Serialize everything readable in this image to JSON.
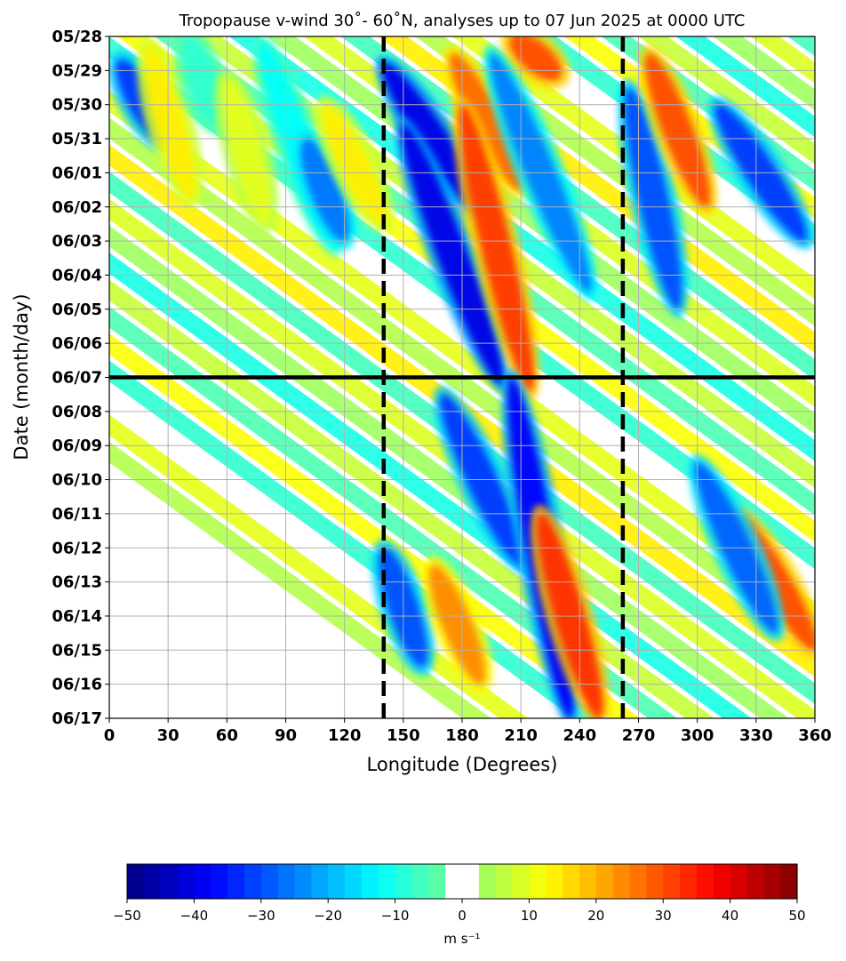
{
  "chart_data": {
    "type": "heatmap",
    "title": "Tropopause v-wind 30˚- 60˚N, analyses up to 07 Jun 2025 at 0000 UTC",
    "xlabel": "Longitude (Degrees)",
    "ylabel": "Date (month/day)",
    "x_ticks": [
      "0",
      "30",
      "60",
      "90",
      "120",
      "150",
      "180",
      "210",
      "240",
      "270",
      "300",
      "330",
      "360"
    ],
    "xlim": [
      0,
      360
    ],
    "y_ticks": [
      "05/28",
      "05/29",
      "05/30",
      "05/31",
      "06/01",
      "06/02",
      "06/03",
      "06/04",
      "06/05",
      "06/06",
      "06/07",
      "06/08",
      "06/09",
      "06/10",
      "06/11",
      "06/12",
      "06/13",
      "06/14",
      "06/15",
      "06/16",
      "06/17"
    ],
    "analysis_date": "06/07",
    "reference_longitudes": [
      140,
      262
    ],
    "grid": true,
    "colorbar": {
      "ticks": [
        "−50",
        "−40",
        "−30",
        "−20",
        "−10",
        "0",
        "10",
        "20",
        "30",
        "40",
        "50"
      ],
      "range": [
        -50,
        50
      ],
      "step": 2.5,
      "unit": "m s⁻¹",
      "colormap": "jet",
      "white_band": [
        -2.5,
        2.5
      ]
    },
    "features": [
      {
        "lon_start": 5,
        "lon_end": 30,
        "day_start": 0.7,
        "day_end": 3.2,
        "value": -32
      },
      {
        "lon_start": 20,
        "lon_end": 42,
        "day_start": 0.3,
        "day_end": 4.8,
        "value": 14
      },
      {
        "lon_start": 40,
        "lon_end": 55,
        "day_start": 0.0,
        "day_end": 2.6,
        "value": -8
      },
      {
        "lon_start": 60,
        "lon_end": 80,
        "day_start": 1.2,
        "day_end": 5.5,
        "value": 10
      },
      {
        "lon_start": 78,
        "lon_end": 115,
        "day_start": 0.2,
        "day_end": 6.2,
        "value": -12
      },
      {
        "lon_start": 100,
        "lon_end": 120,
        "day_start": 3.0,
        "day_end": 6.0,
        "value": -26
      },
      {
        "lon_start": 110,
        "lon_end": 140,
        "day_start": 2.0,
        "day_end": 5.5,
        "value": 14
      },
      {
        "lon_start": 140,
        "lon_end": 190,
        "day_start": 0.8,
        "day_end": 5.2,
        "value": -40
      },
      {
        "lon_start": 150,
        "lon_end": 200,
        "day_start": 2.6,
        "day_end": 10.2,
        "value": -40
      },
      {
        "lon_start": 175,
        "lon_end": 210,
        "day_start": 0.5,
        "day_end": 4.5,
        "value": 27
      },
      {
        "lon_start": 180,
        "lon_end": 215,
        "day_start": 2.0,
        "day_end": 10.4,
        "value": 32
      },
      {
        "lon_start": 205,
        "lon_end": 230,
        "day_start": 0.0,
        "day_end": 1.2,
        "value": 30
      },
      {
        "lon_start": 195,
        "lon_end": 245,
        "day_start": 0.5,
        "day_end": 7.5,
        "value": -25
      },
      {
        "lon_start": 265,
        "lon_end": 290,
        "day_start": 1.5,
        "day_end": 8.0,
        "value": -30
      },
      {
        "lon_start": 275,
        "lon_end": 305,
        "day_start": 0.5,
        "day_end": 5.0,
        "value": 30
      },
      {
        "lon_start": 310,
        "lon_end": 355,
        "day_start": 2.0,
        "day_end": 6.0,
        "value": -32
      },
      {
        "lon_start": 170,
        "lon_end": 210,
        "day_start": 10.5,
        "day_end": 15.5,
        "value": -32
      },
      {
        "lon_start": 205,
        "lon_end": 235,
        "day_start": 10.0,
        "day_end": 20.0,
        "value": -38
      },
      {
        "lon_start": 220,
        "lon_end": 250,
        "day_start": 14.0,
        "day_end": 20.0,
        "value": 33
      },
      {
        "lon_start": 140,
        "lon_end": 160,
        "day_start": 15.0,
        "day_end": 18.5,
        "value": -30
      },
      {
        "lon_start": 165,
        "lon_end": 190,
        "day_start": 15.5,
        "day_end": 19.0,
        "value": 24
      },
      {
        "lon_start": 320,
        "lon_end": 360,
        "day_start": 14.0,
        "day_end": 18.0,
        "value": 30
      },
      {
        "lon_start": 300,
        "lon_end": 340,
        "day_start": 12.5,
        "day_end": 17.5,
        "value": -28
      }
    ]
  }
}
